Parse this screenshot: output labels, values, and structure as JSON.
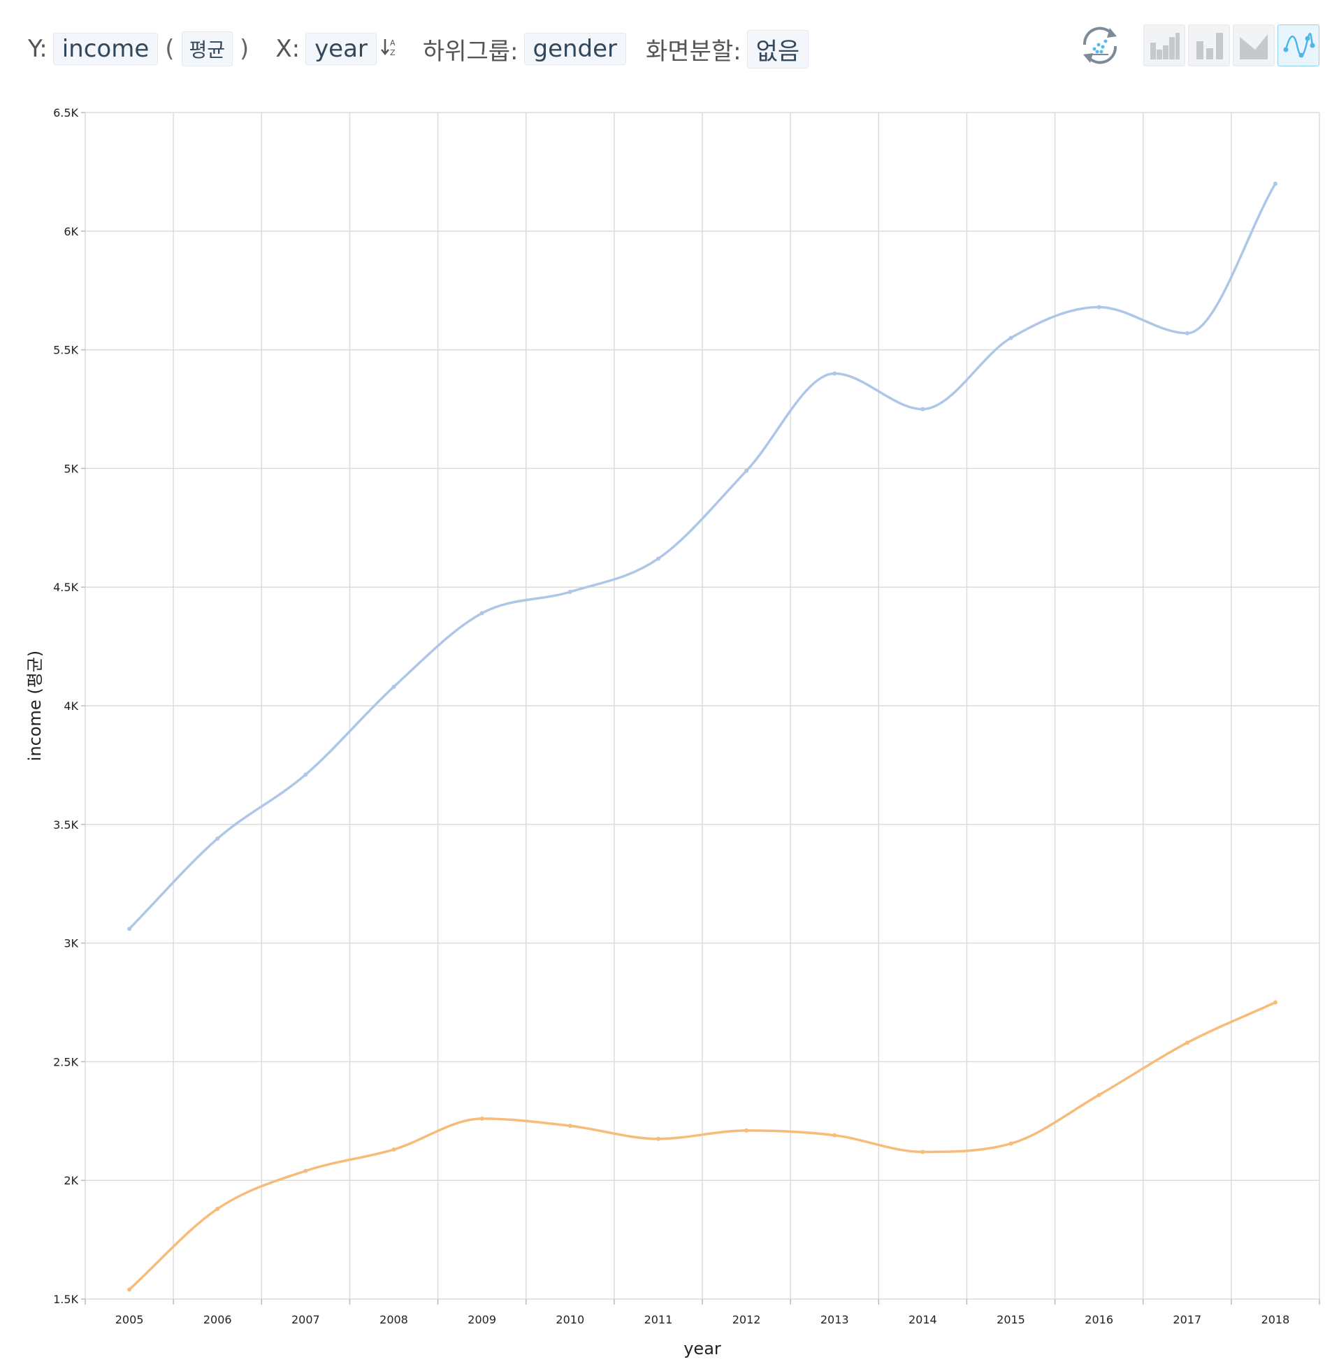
{
  "toolbar": {
    "y_label": "Y:",
    "y_field": "income",
    "paren_open": "(",
    "aggregate": "평균",
    "paren_close": ")",
    "x_label": "X:",
    "x_field": "year",
    "sort_icon": "sort-az-icon",
    "subgroup_label": "하위그룹:",
    "subgroup_field": "gender",
    "split_label": "화면분할:",
    "split_value": "없음"
  },
  "chart_buttons": {
    "refresh": "refresh-icon",
    "types": [
      "histogram-icon",
      "bar-chart-icon",
      "area-chart-icon",
      "line-chart-icon"
    ],
    "active_type": "line-chart-icon"
  },
  "chart_data": {
    "type": "line",
    "xlabel": "year",
    "ylabel": "income (평균)",
    "categories": [
      "2005",
      "2006",
      "2007",
      "2008",
      "2009",
      "2010",
      "2011",
      "2012",
      "2013",
      "2014",
      "2015",
      "2016",
      "2017",
      "2018"
    ],
    "ylim": [
      1500,
      6500
    ],
    "yticks": [
      1500,
      2000,
      2500,
      3000,
      3500,
      4000,
      4500,
      5000,
      5500,
      6000,
      6500
    ],
    "ytick_labels": [
      "1.5K",
      "2K",
      "2.5K",
      "3K",
      "3.5K",
      "4K",
      "4.5K",
      "5K",
      "5.5K",
      "6K",
      "6.5K"
    ],
    "grid": true,
    "legend": "none",
    "series": [
      {
        "color": "#aec7e8",
        "values": [
          3060,
          3440,
          3710,
          4080,
          4390,
          4480,
          4620,
          4990,
          5400,
          5250,
          5550,
          5680,
          5570,
          6200
        ]
      },
      {
        "color": "#f7bb7a",
        "values": [
          1540,
          1880,
          2040,
          2130,
          2260,
          2230,
          2175,
          2210,
          2190,
          2120,
          2155,
          2360,
          2580,
          2750
        ]
      }
    ]
  }
}
